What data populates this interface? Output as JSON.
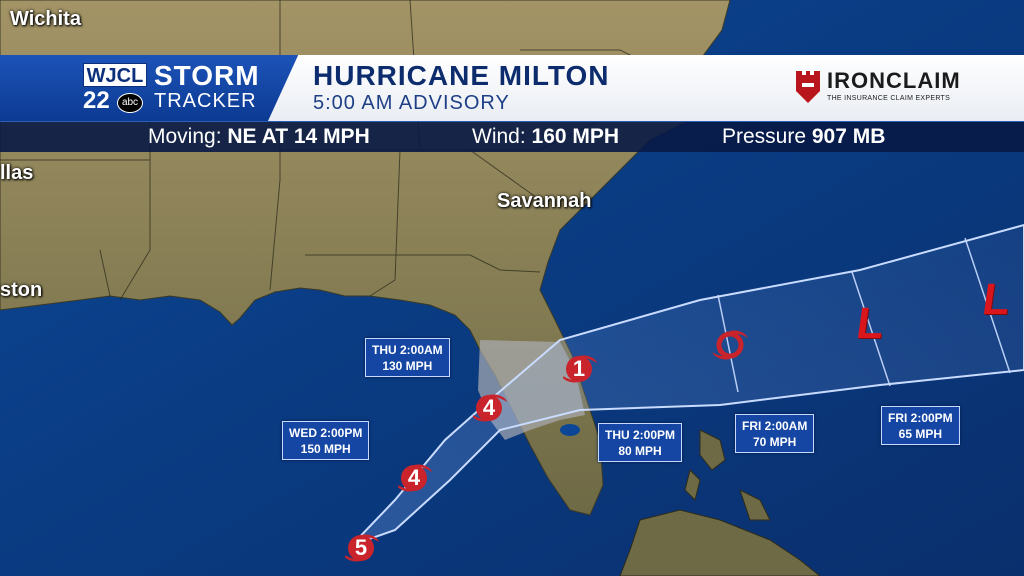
{
  "cities": [
    {
      "name": "Wichita"
    },
    {
      "name": "llas"
    },
    {
      "name": "ston"
    },
    {
      "name": "Savannah"
    }
  ],
  "header": {
    "station": "WJCL",
    "channel": "22",
    "network": "abc",
    "brand_top": "STORM",
    "brand_bottom": "TRACKER",
    "storm_name": "HURRICANE MILTON",
    "advisory": "5:00 AM ADVISORY",
    "sponsor_name": "IRONCLAIM",
    "sponsor_tagline": "THE INSURANCE CLAIM EXPERTS"
  },
  "stats": {
    "moving_label": "Moving:",
    "moving_value": "NE AT 14 MPH",
    "wind_label": "Wind:",
    "wind_value": "160 MPH",
    "pressure_label": "Pressure",
    "pressure_value": "907 MB"
  },
  "forecast_points": [
    {
      "time": "WED 2:00PM",
      "wind": "150 MPH"
    },
    {
      "time": "THU 2:00AM",
      "wind": "130 MPH"
    },
    {
      "time": "THU 2:00PM",
      "wind": "80 MPH"
    },
    {
      "time": "FRI 2:00AM",
      "wind": "70 MPH"
    },
    {
      "time": "FRI 2:00PM",
      "wind": "65 MPH"
    }
  ],
  "storm_symbols": [
    {
      "category": "5"
    },
    {
      "category": "4"
    },
    {
      "category": "4"
    },
    {
      "category": "1"
    }
  ],
  "low_markers": [
    "L",
    "L"
  ],
  "colors": {
    "ocean": "#0d3f86",
    "land": "#8f8358",
    "cone_outline": "#b8d4ff",
    "hurricane_red": "#c9232b",
    "warning_area": "#a9adb2"
  }
}
